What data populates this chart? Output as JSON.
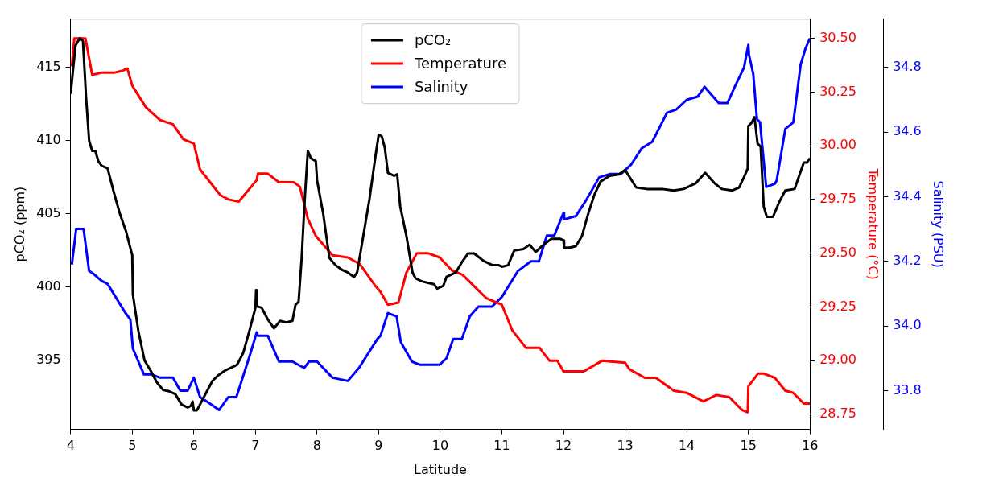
{
  "chart_data": {
    "type": "line",
    "xlabel": "Latitude",
    "ylabel": "pCO₂ (ppm)",
    "y2label": "Temperature (°C)",
    "y3label": "Salinity (PSU)",
    "xlim": [
      4,
      16
    ],
    "xticks": [
      4,
      5,
      6,
      7,
      8,
      9,
      10,
      11,
      12,
      13,
      14,
      15,
      16
    ],
    "ylim": [
      390.3,
      418.3
    ],
    "yticks": [
      395,
      400,
      405,
      410,
      415
    ],
    "y2lim": [
      28.68,
      30.59
    ],
    "y2ticks": [
      28.75,
      {
        "value": 29,
        "label": "29.00"
      },
      29.25,
      {
        "value": 29.5,
        "label": "29.50"
      },
      29.75,
      {
        "value": 30,
        "label": "30.00"
      },
      30.25,
      {
        "value": 30.5,
        "label": "30.50"
      }
    ],
    "y3lim": [
      33.68,
      34.95
    ],
    "y3ticks": [
      33.8,
      {
        "value": 34,
        "label": "34.0"
      },
      34.2,
      34.4,
      34.6,
      34.8
    ],
    "legend": "top",
    "series": [
      {
        "name": "pCO₂",
        "color": "#000000",
        "x": [
          4.0,
          4.08,
          4.15,
          4.2,
          4.25,
          4.3,
          4.35,
          4.4,
          4.45,
          4.5,
          4.6,
          4.7,
          4.8,
          4.9,
          4.98,
          5.0,
          5.01,
          5.1,
          5.2,
          5.3,
          5.4,
          5.5,
          5.6,
          5.7,
          5.8,
          5.9,
          5.95,
          5.98,
          6.0,
          6.05,
          6.1,
          6.2,
          6.3,
          6.4,
          6.5,
          6.6,
          6.7,
          6.8,
          6.9,
          7.0,
          7.01,
          7.02,
          7.1,
          7.2,
          7.3,
          7.4,
          7.5,
          7.6,
          7.65,
          7.7,
          7.75,
          7.8,
          7.85,
          7.9,
          7.98,
          8.0,
          8.1,
          8.2,
          8.3,
          8.4,
          8.5,
          8.6,
          8.65,
          8.75,
          8.85,
          8.95,
          9.0,
          9.05,
          9.1,
          9.15,
          9.2,
          9.25,
          9.3,
          9.35,
          9.45,
          9.55,
          9.6,
          9.7,
          9.8,
          9.9,
          9.95,
          10.05,
          10.1,
          10.25,
          10.35,
          10.45,
          10.55,
          10.7,
          10.85,
          10.95,
          11.0,
          11.1,
          11.2,
          11.35,
          11.45,
          11.55,
          11.65,
          11.8,
          11.95,
          12.0,
          12.01,
          12.1,
          12.2,
          12.3,
          12.4,
          12.5,
          12.6,
          12.75,
          12.9,
          13.0,
          13.18,
          13.35,
          13.6,
          13.79,
          13.95,
          14.15,
          14.3,
          14.45,
          14.57,
          14.74,
          14.85,
          14.95,
          14.99,
          15.0,
          15.05,
          15.1,
          15.15,
          15.2,
          15.25,
          15.3,
          15.4,
          15.5,
          15.6,
          15.75,
          15.9,
          15.95,
          16.0
        ],
        "values": [
          413.2,
          416.5,
          417,
          416.8,
          413,
          410,
          409.3,
          409.3,
          408.6,
          408.3,
          408.1,
          406.5,
          405,
          403.8,
          402.5,
          402.2,
          399.5,
          397,
          395,
          394.3,
          393.5,
          393,
          392.9,
          392.7,
          392,
          391.8,
          391.9,
          392.2,
          391.6,
          391.6,
          392,
          392.8,
          393.6,
          394,
          394.3,
          394.5,
          394.7,
          395.5,
          397,
          398.6,
          399.8,
          398.7,
          398.6,
          397.8,
          397.2,
          397.7,
          397.6,
          397.7,
          398.8,
          399,
          402,
          406,
          409.3,
          408.8,
          408.6,
          407.3,
          405,
          402,
          401.5,
          401.2,
          401,
          400.7,
          401,
          403.5,
          406,
          409,
          410.4,
          410.3,
          409.5,
          407.8,
          407.7,
          407.6,
          407.7,
          405.5,
          403.5,
          401,
          400.6,
          400.4,
          400.3,
          400.2,
          399.9,
          400.1,
          400.7,
          401,
          401.7,
          402.3,
          402.3,
          401.8,
          401.5,
          401.5,
          401.4,
          401.5,
          402.5,
          402.6,
          402.9,
          402.4,
          402.8,
          403.3,
          403.3,
          403.2,
          402.7,
          402.7,
          402.8,
          403.5,
          405,
          406.3,
          407.2,
          407.6,
          407.7,
          408,
          406.8,
          406.7,
          406.7,
          406.6,
          406.7,
          407.1,
          407.8,
          407.1,
          406.7,
          406.6,
          406.8,
          407.7,
          408.1,
          411,
          411.2,
          411.6,
          409.8,
          409.6,
          405.5,
          404.8,
          404.8,
          405.8,
          406.6,
          406.7,
          408.5,
          408.5,
          408.8
        ]
      },
      {
        "name": "Temperature",
        "color": "#ff0000",
        "axis": "y2",
        "x": [
          4.02,
          4.06,
          4.24,
          4.35,
          4.5,
          4.7,
          4.85,
          4.92,
          5.0,
          5.22,
          5.45,
          5.66,
          5.83,
          6.0,
          6.1,
          6.43,
          6.56,
          6.73,
          7.02,
          7.04,
          7.2,
          7.38,
          7.62,
          7.72,
          7.85,
          7.98,
          8.25,
          8.5,
          8.69,
          8.94,
          9.03,
          9.15,
          9.32,
          9.45,
          9.62,
          9.8,
          9.99,
          10.19,
          10.36,
          10.75,
          11.0,
          11.17,
          11.39,
          11.61,
          11.77,
          11.9,
          12.0,
          12.33,
          12.63,
          13.0,
          13.07,
          13.32,
          13.5,
          13.79,
          14.0,
          14.27,
          14.48,
          14.69,
          14.9,
          14.99,
          15.0,
          15.16,
          15.24,
          15.43,
          15.6,
          15.73,
          15.9,
          16.0
        ],
        "values": [
          30.37,
          30.5,
          30.5,
          30.33,
          30.34,
          30.34,
          30.35,
          30.36,
          30.28,
          30.18,
          30.12,
          30.1,
          30.03,
          30.01,
          29.89,
          29.77,
          29.75,
          29.74,
          29.84,
          29.87,
          29.87,
          29.83,
          29.83,
          29.81,
          29.66,
          29.58,
          29.49,
          29.48,
          29.45,
          29.35,
          29.32,
          29.26,
          29.27,
          29.41,
          29.5,
          29.5,
          29.48,
          29.42,
          29.4,
          29.29,
          29.26,
          29.14,
          29.06,
          29.06,
          29.0,
          29.0,
          28.95,
          28.95,
          29.0,
          28.99,
          28.96,
          28.92,
          28.92,
          28.86,
          28.85,
          28.81,
          28.84,
          28.83,
          28.77,
          28.76,
          28.88,
          28.94,
          28.94,
          28.92,
          28.86,
          28.85,
          28.8,
          28.8
        ]
      },
      {
        "name": "Salinity",
        "color": "#0000ff",
        "axis": "y3",
        "x": [
          4.02,
          4.09,
          4.21,
          4.3,
          4.38,
          4.5,
          4.6,
          4.89,
          4.97,
          5.01,
          5.19,
          5.31,
          5.45,
          5.66,
          5.78,
          5.9,
          6.0,
          6.1,
          6.26,
          6.41,
          6.56,
          6.69,
          6.91,
          7.02,
          7.04,
          7.2,
          7.38,
          7.6,
          7.79,
          7.87,
          8.0,
          8.25,
          8.5,
          8.68,
          8.98,
          9.03,
          9.15,
          9.29,
          9.36,
          9.54,
          9.67,
          9.99,
          10.1,
          10.21,
          10.35,
          10.48,
          10.62,
          10.84,
          11.0,
          11.26,
          11.47,
          11.6,
          11.73,
          11.85,
          12.0,
          12.01,
          12.2,
          12.37,
          12.58,
          12.75,
          12.93,
          13.1,
          13.27,
          13.44,
          13.68,
          13.83,
          14.0,
          14.18,
          14.29,
          14.52,
          14.66,
          14.78,
          14.93,
          15.0,
          15.01,
          15.08,
          15.14,
          15.19,
          15.29,
          15.43,
          15.46,
          15.6,
          15.73,
          15.85,
          15.93,
          16.0
        ],
        "values": [
          34.19,
          34.3,
          34.3,
          34.17,
          34.16,
          34.14,
          34.13,
          34.04,
          34.02,
          33.93,
          33.85,
          33.85,
          33.84,
          33.84,
          33.8,
          33.8,
          33.84,
          33.78,
          33.76,
          33.74,
          33.78,
          33.78,
          33.91,
          33.98,
          33.97,
          33.97,
          33.89,
          33.89,
          33.87,
          33.89,
          33.89,
          33.84,
          33.83,
          33.87,
          33.96,
          33.97,
          34.04,
          34.03,
          33.95,
          33.89,
          33.88,
          33.88,
          33.9,
          33.96,
          33.96,
          34.03,
          34.06,
          34.06,
          34.09,
          34.17,
          34.2,
          34.2,
          34.28,
          34.28,
          34.35,
          34.33,
          34.34,
          34.39,
          34.46,
          34.47,
          34.47,
          34.5,
          34.55,
          34.57,
          34.66,
          34.67,
          34.7,
          34.71,
          34.74,
          34.69,
          34.69,
          34.74,
          34.8,
          34.87,
          34.84,
          34.78,
          34.64,
          34.63,
          34.43,
          34.44,
          34.45,
          34.61,
          34.63,
          34.81,
          34.86,
          34.89
        ]
      }
    ]
  }
}
